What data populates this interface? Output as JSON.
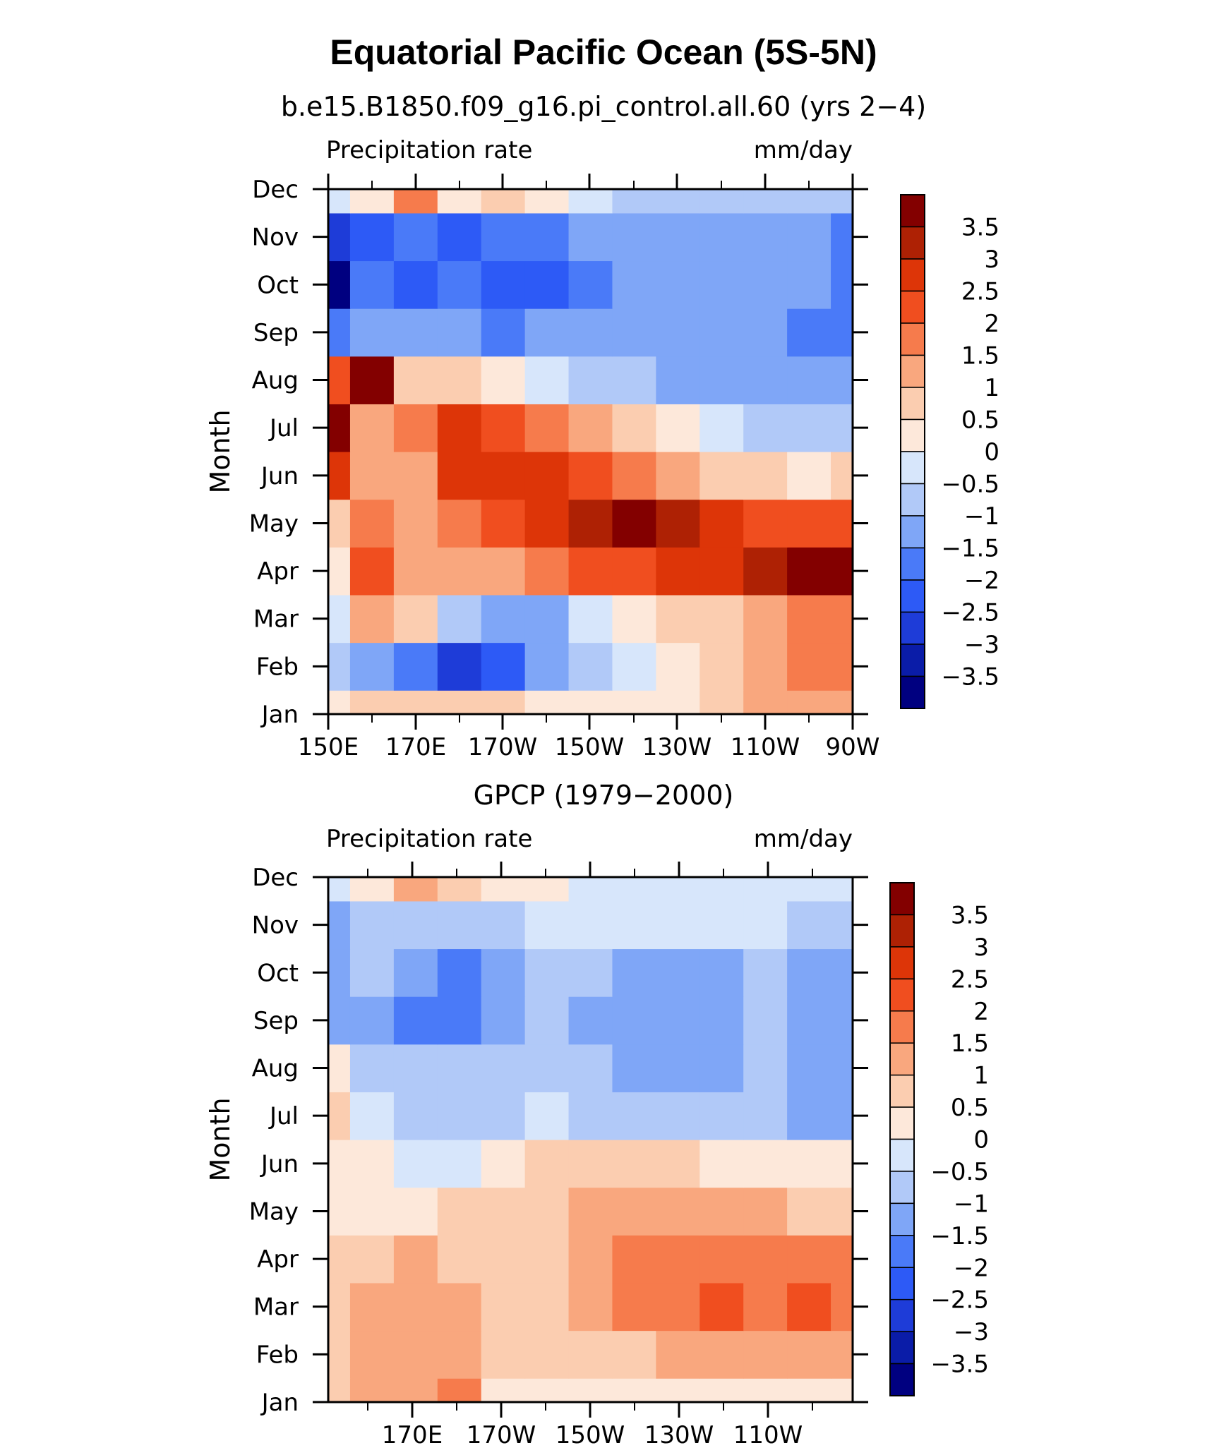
{
  "title": "Equatorial Pacific Ocean (5S-5N)",
  "colors": {
    "palette": [
      "#000080",
      "#0A1CA8",
      "#1E3CD8",
      "#2D5AF6",
      "#4A7AF8",
      "#7FA6F7",
      "#B1C9F8",
      "#D7E6FB",
      "#FDE8DA",
      "#FBCDB0",
      "#F9A77E",
      "#F67B4C",
      "#F04E1F",
      "#DD3508",
      "#AE2104",
      "#830000"
    ],
    "levels": [
      -3.5,
      -3,
      -2.5,
      -2,
      -1.5,
      -1,
      -0.5,
      0,
      0.5,
      1,
      1.5,
      2,
      2.5,
      3,
      3.5
    ]
  },
  "chart_data": [
    {
      "type": "heatmap",
      "title": "b.e15.B1850.f09_g16.pi_control.all.60 (yrs 2−4)",
      "left_string": "Precipitation rate",
      "right_string": "mm/day",
      "ylabel": "Month",
      "xlabel": "",
      "x_tick_labels": [
        "150E",
        "170E",
        "170W",
        "150W",
        "130W",
        "110W",
        "90W"
      ],
      "y_tick_labels": [
        "Jan",
        "Feb",
        "Mar",
        "Apr",
        "May",
        "Jun",
        "Jul",
        "Aug",
        "Sep",
        "Oct",
        "Nov",
        "Dec"
      ],
      "colorbar_labels": [
        "−3.5",
        "−3",
        "−2.5",
        "−2",
        "−1.5",
        "−1",
        "−0.5",
        "0",
        "0.5",
        "1",
        "1.5",
        "2",
        "2.5",
        "3",
        "3.5"
      ],
      "x": [
        150,
        160,
        170,
        180,
        190,
        200,
        210,
        220,
        230,
        240,
        250,
        260,
        270
      ],
      "y": [
        "Jan",
        "Feb",
        "Mar",
        "Apr",
        "May",
        "Jun",
        "Jul",
        "Aug",
        "Sep",
        "Oct",
        "Nov",
        "Dec"
      ],
      "z": [
        [
          0.3,
          0.5,
          0.5,
          0.8,
          0.6,
          0.3,
          0.2,
          0.2,
          0.3,
          0.6,
          1.0,
          1.3,
          1.4
        ],
        [
          -0.8,
          -1.5,
          -1.8,
          -2.8,
          -2.2,
          -1.5,
          -0.8,
          -0.3,
          0.1,
          0.5,
          1.2,
          1.5,
          1.9
        ],
        [
          -0.3,
          1.3,
          0.5,
          -0.8,
          -1.2,
          -1.2,
          -0.5,
          0.3,
          0.6,
          0.8,
          1.2,
          1.5,
          1.7
        ],
        [
          0.4,
          2.0,
          1.0,
          1.0,
          1.4,
          1.8,
          2.0,
          2.4,
          2.6,
          2.9,
          3.4,
          3.5,
          3.8
        ],
        [
          0.6,
          1.5,
          1.2,
          1.8,
          2.4,
          2.9,
          3.4,
          3.6,
          3.0,
          2.6,
          2.3,
          2.0,
          2.0
        ],
        [
          2.8,
          1.0,
          1.4,
          2.8,
          2.9,
          2.7,
          2.2,
          1.7,
          1.2,
          0.9,
          0.6,
          0.4,
          0.5
        ],
        [
          3.5,
          1.2,
          1.8,
          2.8,
          2.3,
          1.7,
          1.1,
          0.6,
          0.1,
          -0.4,
          -0.6,
          -0.8,
          -1.0
        ],
        [
          2.0,
          3.5,
          0.9,
          0.5,
          0.1,
          -0.3,
          -0.6,
          -0.9,
          -1.1,
          -1.2,
          -1.3,
          -1.4,
          -1.5
        ],
        [
          -1.8,
          -1.2,
          -1.4,
          -1.3,
          -1.8,
          -1.5,
          -1.4,
          -1.4,
          -1.3,
          -1.4,
          -1.4,
          -1.6,
          -1.8
        ],
        [
          -3.6,
          -2.0,
          -2.2,
          -2.0,
          -2.4,
          -2.2,
          -1.6,
          -1.4,
          -1.2,
          -1.3,
          -1.4,
          -1.5,
          -2.0
        ],
        [
          -2.8,
          -2.1,
          -1.8,
          -2.1,
          -2.0,
          -1.9,
          -1.4,
          -1.2,
          -1.1,
          -1.2,
          -1.3,
          -1.4,
          -1.9
        ],
        [
          -0.3,
          0.4,
          1.5,
          0.2,
          0.8,
          0.3,
          -0.2,
          -0.6,
          -0.7,
          -0.8,
          -0.8,
          -0.8,
          -0.9
        ]
      ]
    },
    {
      "type": "heatmap",
      "title": "GPCP (1979−2000)",
      "left_string": "Precipitation rate",
      "right_string": "mm/day",
      "ylabel": "Month",
      "xlabel": "",
      "x_tick_labels": [
        "170E",
        "170W",
        "150W",
        "130W",
        "110W"
      ],
      "y_tick_labels": [
        "Jan",
        "Feb",
        "Mar",
        "Apr",
        "May",
        "Jun",
        "Jul",
        "Aug",
        "Sep",
        "Oct",
        "Nov",
        "Dec"
      ],
      "colorbar_labels": [
        "−3.5",
        "−3",
        "−2.5",
        "−2",
        "−1.5",
        "−1",
        "−0.5",
        "0",
        "0.5",
        "1",
        "1.5",
        "2",
        "2.5",
        "3",
        "3.5"
      ],
      "x": [
        150,
        160,
        170,
        180,
        190,
        200,
        210,
        220,
        230,
        240,
        250,
        260,
        270
      ],
      "y": [
        "Jan",
        "Feb",
        "Mar",
        "Apr",
        "May",
        "Jun",
        "Jul",
        "Aug",
        "Sep",
        "Oct",
        "Nov",
        "Dec"
      ],
      "z": [
        [
          0.6,
          1.1,
          1.2,
          1.6,
          0.3,
          0.2,
          0.2,
          0.2,
          0.1,
          0.1,
          0.1,
          0.1,
          0.2
        ],
        [
          0.9,
          1.2,
          1.3,
          1.3,
          0.6,
          0.6,
          0.8,
          0.9,
          1.0,
          1.1,
          1.1,
          1.2,
          1.3
        ],
        [
          0.8,
          1.3,
          1.2,
          1.2,
          0.5,
          0.9,
          1.3,
          1.5,
          1.7,
          2.0,
          1.6,
          2.1,
          1.9
        ],
        [
          0.6,
          0.7,
          1.1,
          0.9,
          0.8,
          0.8,
          1.3,
          1.7,
          1.8,
          1.9,
          1.8,
          1.9,
          1.7
        ],
        [
          0.3,
          0.3,
          0.4,
          0.5,
          0.7,
          0.8,
          1.0,
          1.2,
          1.2,
          1.2,
          1.0,
          0.9,
          0.8
        ],
        [
          0.4,
          0.3,
          -0.3,
          -0.2,
          0.1,
          0.5,
          0.6,
          0.6,
          0.5,
          0.4,
          0.3,
          0.2,
          0.2
        ],
        [
          0.7,
          -0.3,
          -0.6,
          -0.8,
          -0.6,
          -0.4,
          -0.6,
          -0.7,
          -0.8,
          -0.9,
          -0.9,
          -1.1,
          -1.2
        ],
        [
          0.3,
          -0.7,
          -0.8,
          -0.9,
          -0.9,
          -0.9,
          -0.9,
          -1.2,
          -1.3,
          -1.3,
          -1.0,
          -1.1,
          -1.1
        ],
        [
          -1.2,
          -1.3,
          -1.7,
          -1.8,
          -1.2,
          -1.0,
          -1.3,
          -1.4,
          -1.4,
          -1.3,
          -1.0,
          -1.3,
          -1.3
        ],
        [
          -1.1,
          -1.0,
          -1.3,
          -1.6,
          -1.1,
          -0.9,
          -0.9,
          -1.2,
          -1.3,
          -1.2,
          -0.9,
          -1.1,
          -1.3
        ],
        [
          -1.2,
          -0.8,
          -0.6,
          -0.7,
          -0.6,
          -0.5,
          -0.5,
          -0.5,
          -0.4,
          -0.4,
          -0.5,
          -0.6,
          -0.8
        ],
        [
          -0.3,
          0.4,
          1.0,
          0.6,
          0.3,
          0.1,
          -0.1,
          -0.2,
          -0.3,
          -0.3,
          -0.3,
          -0.3,
          -0.4
        ]
      ]
    }
  ]
}
